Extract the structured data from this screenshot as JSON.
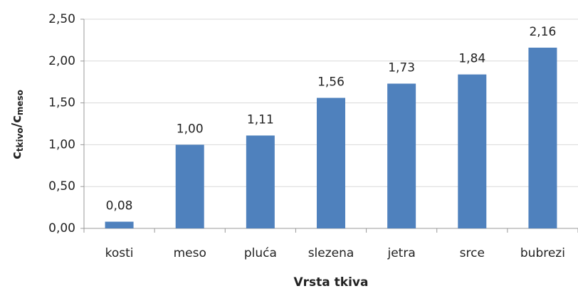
{
  "chart_data": {
    "type": "bar",
    "y_label_parts": [
      "c",
      "tkivo",
      "/c",
      "meso"
    ],
    "x_label": "Vrsta tkiva",
    "categories": [
      "kosti",
      "meso",
      "pluća",
      "slezena",
      "jetra",
      "srce",
      "bubrezi"
    ],
    "values": [
      0.08,
      1.0,
      1.11,
      1.56,
      1.73,
      1.84,
      2.16
    ],
    "value_labels": [
      "0,08",
      "1,00",
      "1,11",
      "1,56",
      "1,73",
      "1,84",
      "2,16"
    ],
    "color": "#4f81bd",
    "ylim": [
      0,
      2.5
    ],
    "yticks": [
      {
        "value": 0,
        "label": "0,00"
      },
      {
        "value": 0.5,
        "label": "0,50"
      },
      {
        "value": 1,
        "label": "1,00"
      },
      {
        "value": 1.5,
        "label": "1,50"
      },
      {
        "value": 2,
        "label": "2,00"
      },
      {
        "value": 2.5,
        "label": "2,50"
      }
    ],
    "grid": true
  }
}
